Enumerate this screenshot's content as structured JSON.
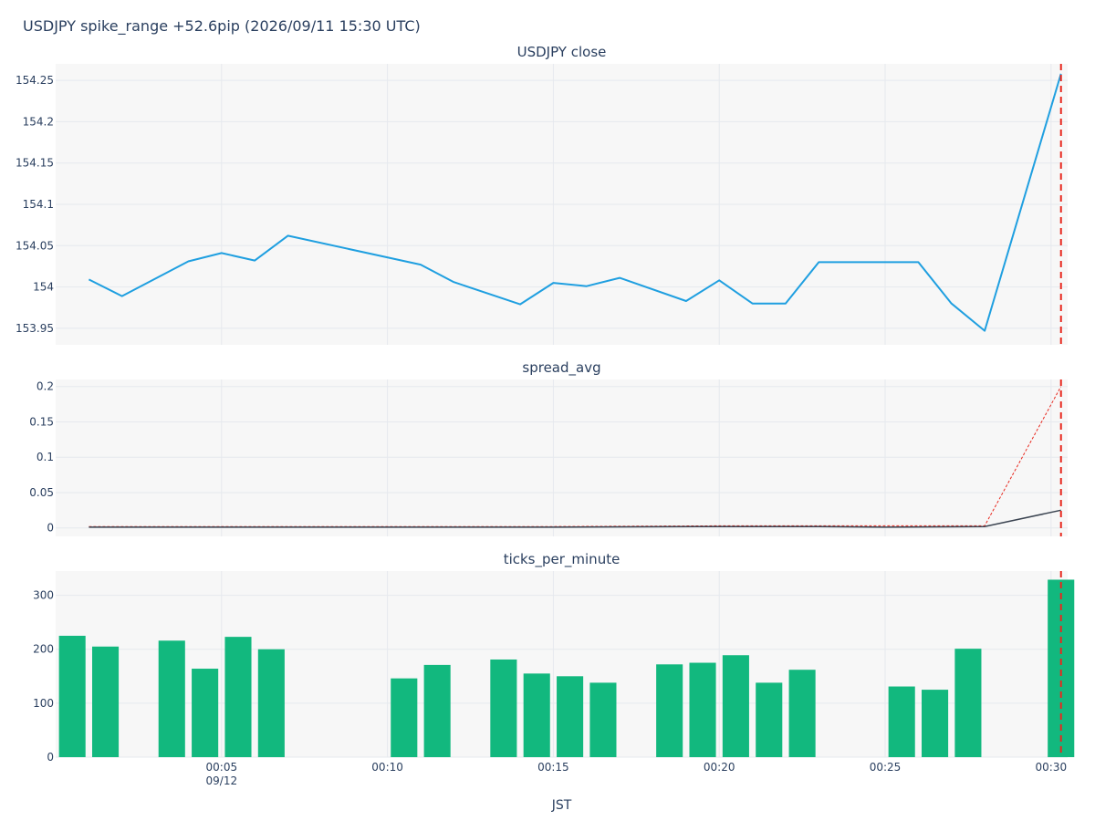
{
  "figure": {
    "title": "USDJPY spike_range +52.6pip (2026/09/11 15:30 UTC)"
  },
  "colors": {
    "price": "#1f9fe0",
    "spread": "#3b4451",
    "spread_ref": "#e8281e",
    "ticks": "#12b87e",
    "event": "#e8281e",
    "plot_bg": "#f7f7f7",
    "grid": "#e6e9ee"
  },
  "x_axis": {
    "label": "JST",
    "range_min": [
      0.0,
      30.5
    ],
    "ticks": [
      {
        "min": 5,
        "label": "00:05",
        "sublabel": "09/12"
      },
      {
        "min": 10,
        "label": "00:10"
      },
      {
        "min": 15,
        "label": "00:15"
      },
      {
        "min": 20,
        "label": "00:20"
      },
      {
        "min": 25,
        "label": "00:25"
      },
      {
        "min": 30,
        "label": "00:30"
      }
    ],
    "event_min": 30.3
  },
  "chart_data": [
    {
      "type": "line",
      "title": "USDJPY close",
      "x": [
        1,
        2,
        4,
        5,
        6,
        7,
        11,
        12,
        14,
        15,
        16,
        17,
        19,
        20,
        21,
        22,
        23,
        25,
        26,
        27,
        28,
        30.3
      ],
      "y": [
        154.009,
        153.989,
        154.031,
        154.041,
        154.032,
        154.062,
        154.027,
        154.006,
        153.979,
        154.005,
        154.001,
        154.011,
        153.983,
        154.008,
        153.98,
        153.98,
        154.03,
        154.03,
        154.03,
        153.98,
        153.947,
        154.258
      ],
      "ylim": [
        153.93,
        154.27
      ],
      "yticks": [
        153.95,
        154,
        154.05,
        154.1,
        154.15,
        154.2,
        154.25
      ],
      "ytick_labels": [
        "153.95",
        "154",
        "154.05",
        "154.1",
        "154.15",
        "154.2",
        "154.25"
      ]
    },
    {
      "type": "line",
      "title": "spread_avg",
      "series": [
        {
          "x": [
            1,
            5,
            10,
            15,
            20,
            23,
            28,
            30.3
          ],
          "values": [
            0.002,
            0.002,
            0.002,
            0.002,
            0.003,
            0.003,
            0.003,
            0.2
          ],
          "style": "dotted"
        },
        {
          "x": [
            1,
            5,
            10,
            15,
            20,
            23,
            25,
            28,
            30.3
          ],
          "values": [
            0.001,
            0.001,
            0.001,
            0.001,
            0.002,
            0.002,
            0.001,
            0.002,
            0.025
          ],
          "style": "solid"
        }
      ],
      "ylim": [
        -0.012,
        0.21
      ],
      "yticks": [
        0,
        0.05,
        0.1,
        0.15,
        0.2
      ],
      "ytick_labels": [
        "0",
        "0.05",
        "0.1",
        "0.15",
        "0.2"
      ]
    },
    {
      "type": "bar",
      "title": "ticks_per_minute",
      "x": [
        0.5,
        1.5,
        3.5,
        4.5,
        5.5,
        6.5,
        10.5,
        11.5,
        13.5,
        14.5,
        15.5,
        16.5,
        18.5,
        19.5,
        20.5,
        21.5,
        22.5,
        25.5,
        26.5,
        27.5,
        30.3
      ],
      "values": [
        225,
        205,
        216,
        164,
        223,
        200,
        146,
        171,
        181,
        155,
        150,
        138,
        172,
        175,
        189,
        138,
        162,
        131,
        125,
        201,
        329
      ],
      "ylim": [
        0,
        345
      ],
      "yticks": [
        0,
        100,
        200,
        300
      ],
      "ytick_labels": [
        "0",
        "100",
        "200",
        "300"
      ]
    }
  ]
}
